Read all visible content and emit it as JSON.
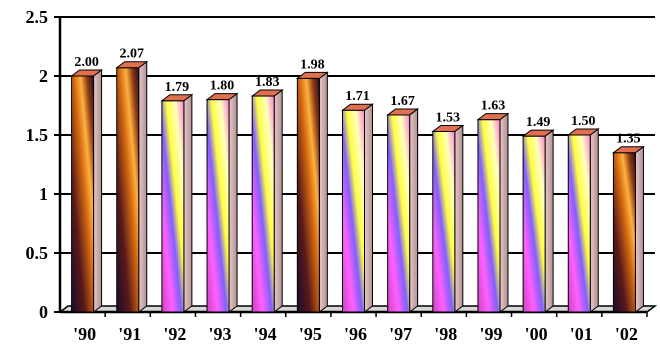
{
  "chart_data": {
    "type": "bar",
    "title": "",
    "xlabel": "",
    "ylabel": "",
    "categories": [
      "'90",
      "'91",
      "'92",
      "'93",
      "'94",
      "'95",
      "'96",
      "'97",
      "'98",
      "'99",
      "'00",
      "'01",
      "'02"
    ],
    "values": [
      2.0,
      2.07,
      1.79,
      1.8,
      1.83,
      1.98,
      1.71,
      1.67,
      1.53,
      1.63,
      1.49,
      1.5,
      1.35
    ],
    "data_labels": [
      "2.00",
      "2.07",
      "1.79",
      "1.80",
      "1.83",
      "1.98",
      "1.71",
      "1.67",
      "1.53",
      "1.63",
      "1.49",
      "1.50",
      "1.35"
    ],
    "ylim": [
      0,
      2.5
    ],
    "yticks": [
      0,
      0.5,
      1,
      1.5,
      2,
      2.5
    ],
    "ytick_labels": [
      "0",
      "0.5",
      "1",
      "1.5",
      "2",
      "2.5"
    ],
    "grid": true,
    "legend": "none",
    "bar_style": "3d-cylinder-gradient",
    "colors": {
      "dark_bars": [
        "#1a0a2e",
        "#5a1a1a",
        "#d46a10",
        "#ffb040"
      ],
      "light_bars": [
        "#d040c0",
        "#ff40ff",
        "#8060ff",
        "#ffff40",
        "#ffffc0"
      ],
      "bar_top": "#e07050",
      "bar_side": "#c8a0a0",
      "axis": "#000000",
      "grid": "#000000"
    }
  }
}
